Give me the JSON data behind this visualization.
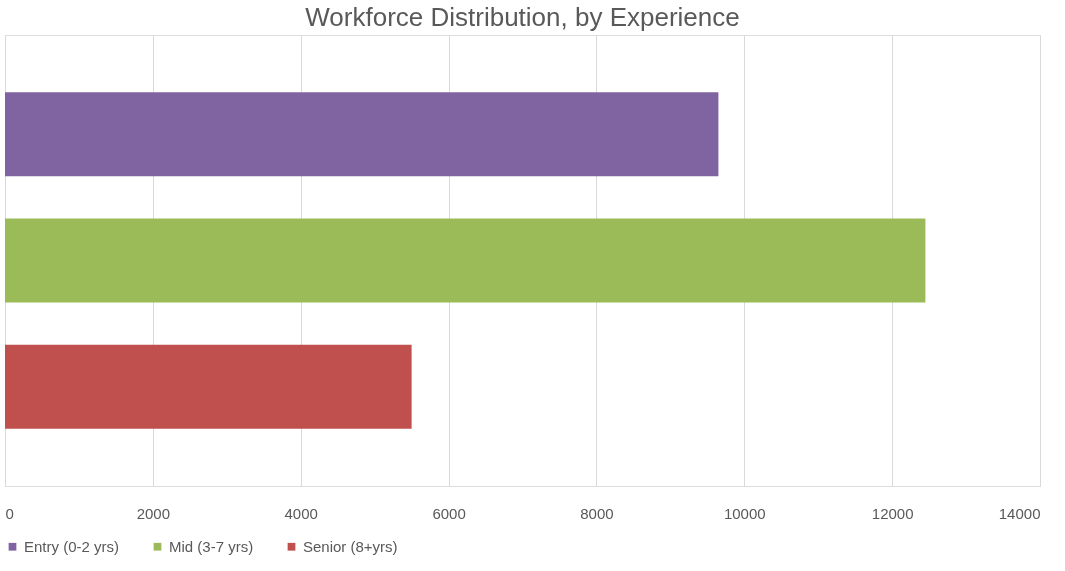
{
  "chart_data": {
    "type": "bar",
    "orientation": "horizontal",
    "title": "Workforce Distribution, by Experience",
    "categories": [
      null
    ],
    "series": [
      {
        "name": "Entry (0-2 yrs)",
        "color": "#8064a2",
        "values": [
          9650
        ]
      },
      {
        "name": "Mid (3-7 yrs)",
        "color": "#9bbb59",
        "values": [
          12450
        ]
      },
      {
        "name": "Senior (8+yrs)",
        "color": "#c0504d",
        "values": [
          5500
        ]
      }
    ],
    "xlim": [
      0,
      14000
    ],
    "xticks": [
      0,
      2000,
      4000,
      6000,
      8000,
      10000,
      12000,
      14000
    ],
    "grid": "x",
    "legend": "bottom"
  }
}
